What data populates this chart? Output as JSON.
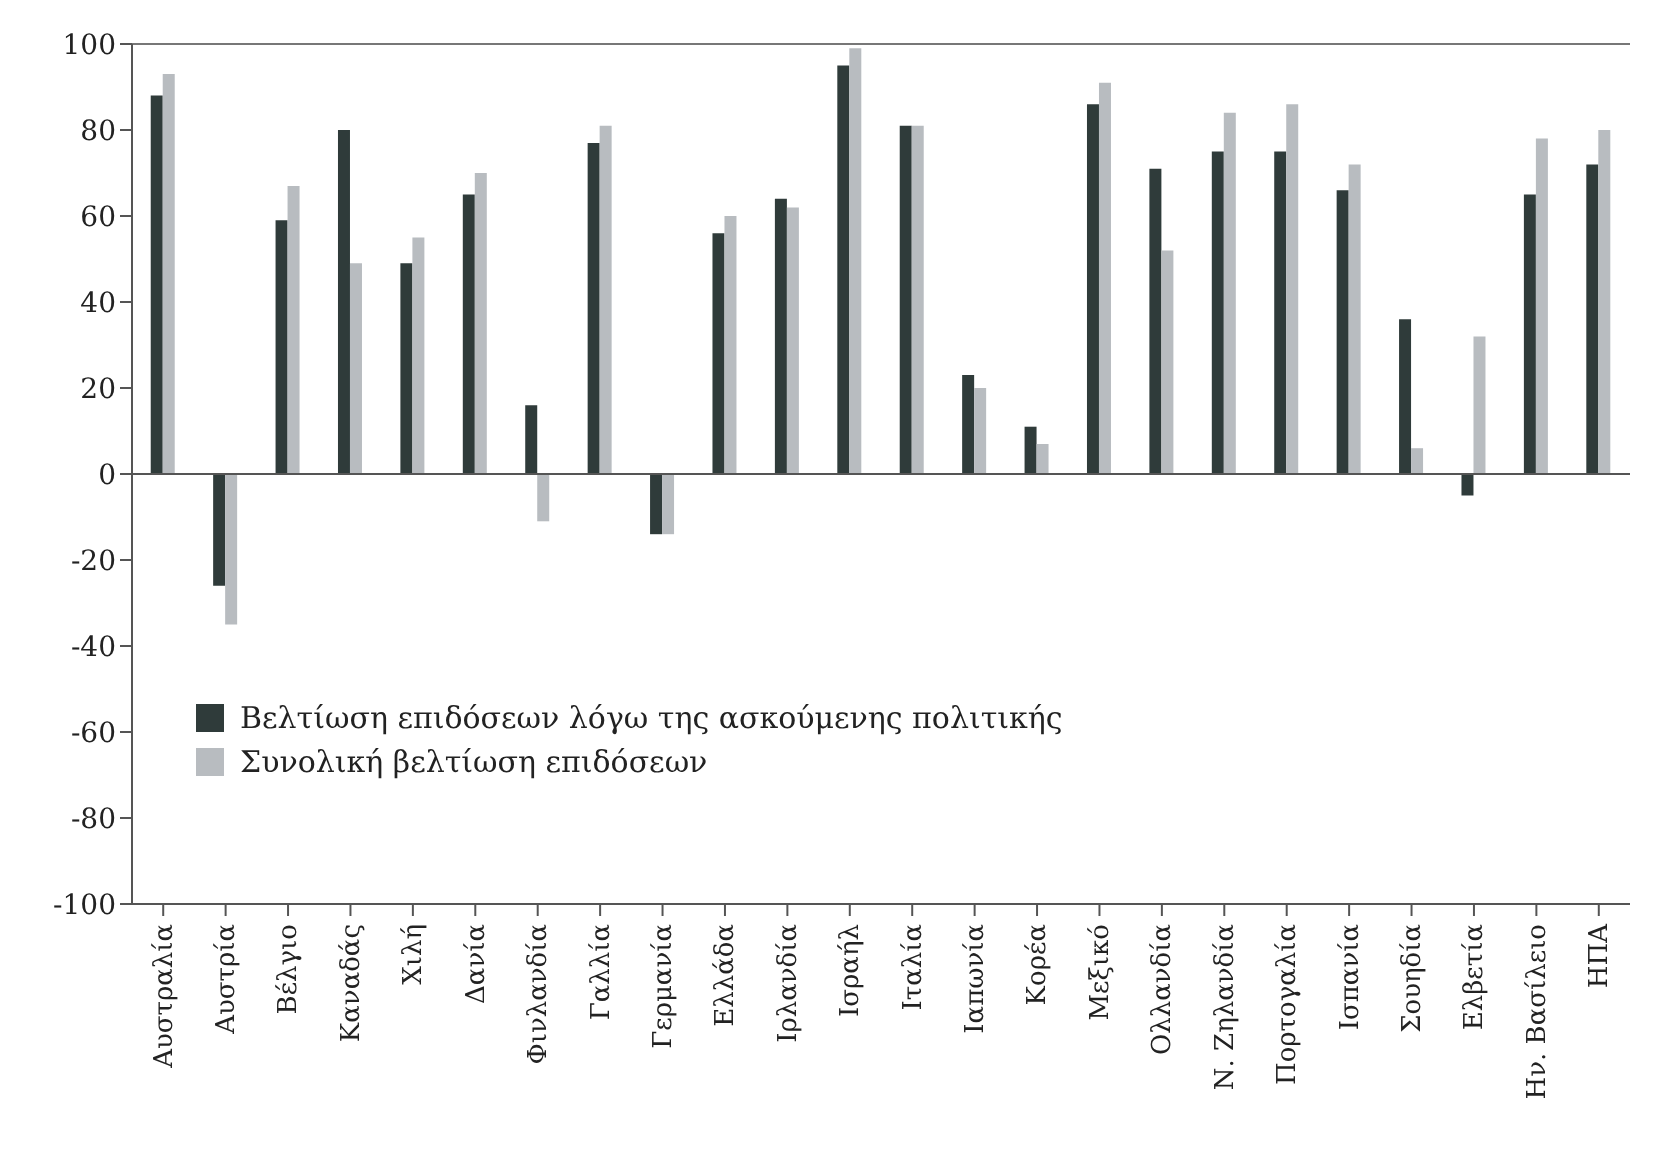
{
  "chart_data": {
    "type": "bar",
    "categories": [
      "Αυστραλία",
      "Αυστρία",
      "Βέλγιο",
      "Καναδάς",
      "Χιλή",
      "Δανία",
      "Φινλανδία",
      "Γαλλία",
      "Γερμανία",
      "Ελλάδα",
      "Ιρλανδία",
      "Ισραήλ",
      "Ιταλία",
      "Ιαπωνία",
      "Κορέα",
      "Μεξικό",
      "Ολλανδία",
      "Ν. Ζηλανδία",
      "Πορτογαλία",
      "Ισπανία",
      "Σουηδία",
      "Ελβετία",
      "Ην. Βασίλειο",
      "ΗΠΑ"
    ],
    "series": [
      {
        "name": "Βελτίωση επιδόσεων λόγω της ασκούμενης πολιτικής",
        "color": "#2f3b3a",
        "values": [
          88,
          -26,
          59,
          80,
          49,
          65,
          16,
          77,
          -14,
          56,
          64,
          95,
          81,
          23,
          11,
          86,
          71,
          75,
          75,
          66,
          36,
          -5,
          65,
          72
        ]
      },
      {
        "name": "Συνολική βελτίωση επιδόσεων",
        "color": "#b8bcc0",
        "values": [
          93,
          -35,
          67,
          49,
          55,
          70,
          -11,
          81,
          -14,
          60,
          62,
          99,
          81,
          20,
          7,
          91,
          52,
          84,
          86,
          72,
          6,
          32,
          78,
          80
        ]
      }
    ],
    "ylim": [
      -100,
      100
    ],
    "yticks": [
      -100,
      -80,
      -60,
      -40,
      -20,
      0,
      20,
      40,
      60,
      80,
      100
    ],
    "ref_lines": [
      {
        "axis": "y",
        "value": 0,
        "color": "#555555"
      }
    ],
    "legend": "bottom left"
  }
}
